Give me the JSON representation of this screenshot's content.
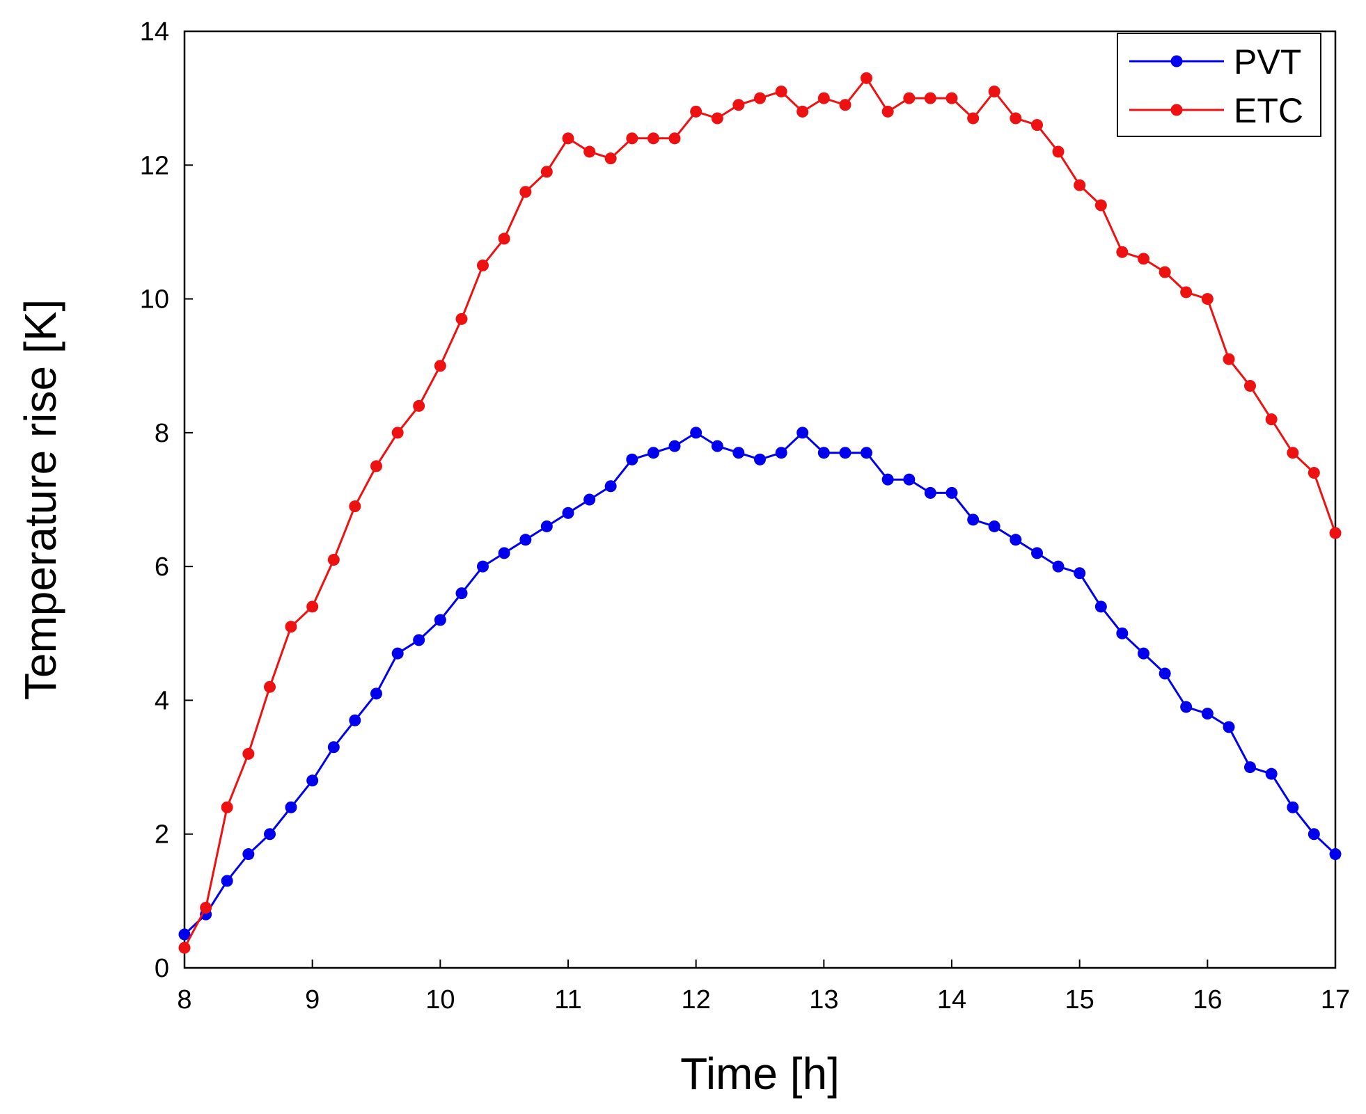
{
  "chart_data": {
    "type": "line",
    "title": "",
    "xlabel": "Time [h]",
    "ylabel": "Temperature rise [K]",
    "xlim": [
      8,
      17
    ],
    "ylim": [
      0,
      14
    ],
    "xticks": [
      8,
      9,
      10,
      11,
      12,
      13,
      14,
      15,
      16,
      17
    ],
    "yticks": [
      0,
      2,
      4,
      6,
      8,
      10,
      12,
      14
    ],
    "grid": false,
    "legend_position": "top-right",
    "x": [
      8.0,
      8.167,
      8.333,
      8.5,
      8.667,
      8.833,
      9.0,
      9.167,
      9.333,
      9.5,
      9.667,
      9.833,
      10.0,
      10.167,
      10.333,
      10.5,
      10.667,
      10.833,
      11.0,
      11.167,
      11.333,
      11.5,
      11.667,
      11.833,
      12.0,
      12.167,
      12.333,
      12.5,
      12.667,
      12.833,
      13.0,
      13.167,
      13.333,
      13.5,
      13.667,
      13.833,
      14.0,
      14.167,
      14.333,
      14.5,
      14.667,
      14.833,
      15.0,
      15.167,
      15.333,
      15.5,
      15.667,
      15.833,
      16.0,
      16.167,
      16.333,
      16.5,
      16.667,
      16.833,
      17.0
    ],
    "series": [
      {
        "name": "PVT",
        "color": "#0000ee",
        "values": [
          0.5,
          0.8,
          1.3,
          1.7,
          2.0,
          2.4,
          2.8,
          3.3,
          3.7,
          4.1,
          4.7,
          4.9,
          5.2,
          5.6,
          6.0,
          6.2,
          6.4,
          6.6,
          6.8,
          7.0,
          7.2,
          7.6,
          7.7,
          7.8,
          8.0,
          7.8,
          7.7,
          7.6,
          7.7,
          8.0,
          7.7,
          7.7,
          7.7,
          7.3,
          7.3,
          7.1,
          7.1,
          6.7,
          6.6,
          6.4,
          6.2,
          6.0,
          5.9,
          5.4,
          5.0,
          4.7,
          4.4,
          3.9,
          3.8,
          3.6,
          3.0,
          2.9,
          2.4,
          2.0,
          1.7
        ]
      },
      {
        "name": "ETC",
        "color": "#ee1111",
        "values": [
          0.3,
          0.9,
          2.4,
          3.2,
          4.2,
          5.1,
          5.4,
          6.1,
          6.9,
          7.5,
          8.0,
          8.4,
          9.0,
          9.7,
          10.5,
          10.9,
          11.6,
          11.9,
          12.4,
          12.2,
          12.1,
          12.4,
          12.4,
          12.4,
          12.8,
          12.7,
          12.9,
          13.0,
          13.1,
          12.8,
          13.0,
          12.9,
          13.3,
          12.8,
          13.0,
          13.0,
          13.0,
          12.7,
          13.1,
          12.7,
          12.6,
          12.2,
          11.7,
          11.4,
          10.7,
          10.6,
          10.4,
          10.1,
          10.0,
          9.1,
          8.7,
          8.2,
          7.7,
          7.4,
          6.5
        ]
      }
    ]
  }
}
